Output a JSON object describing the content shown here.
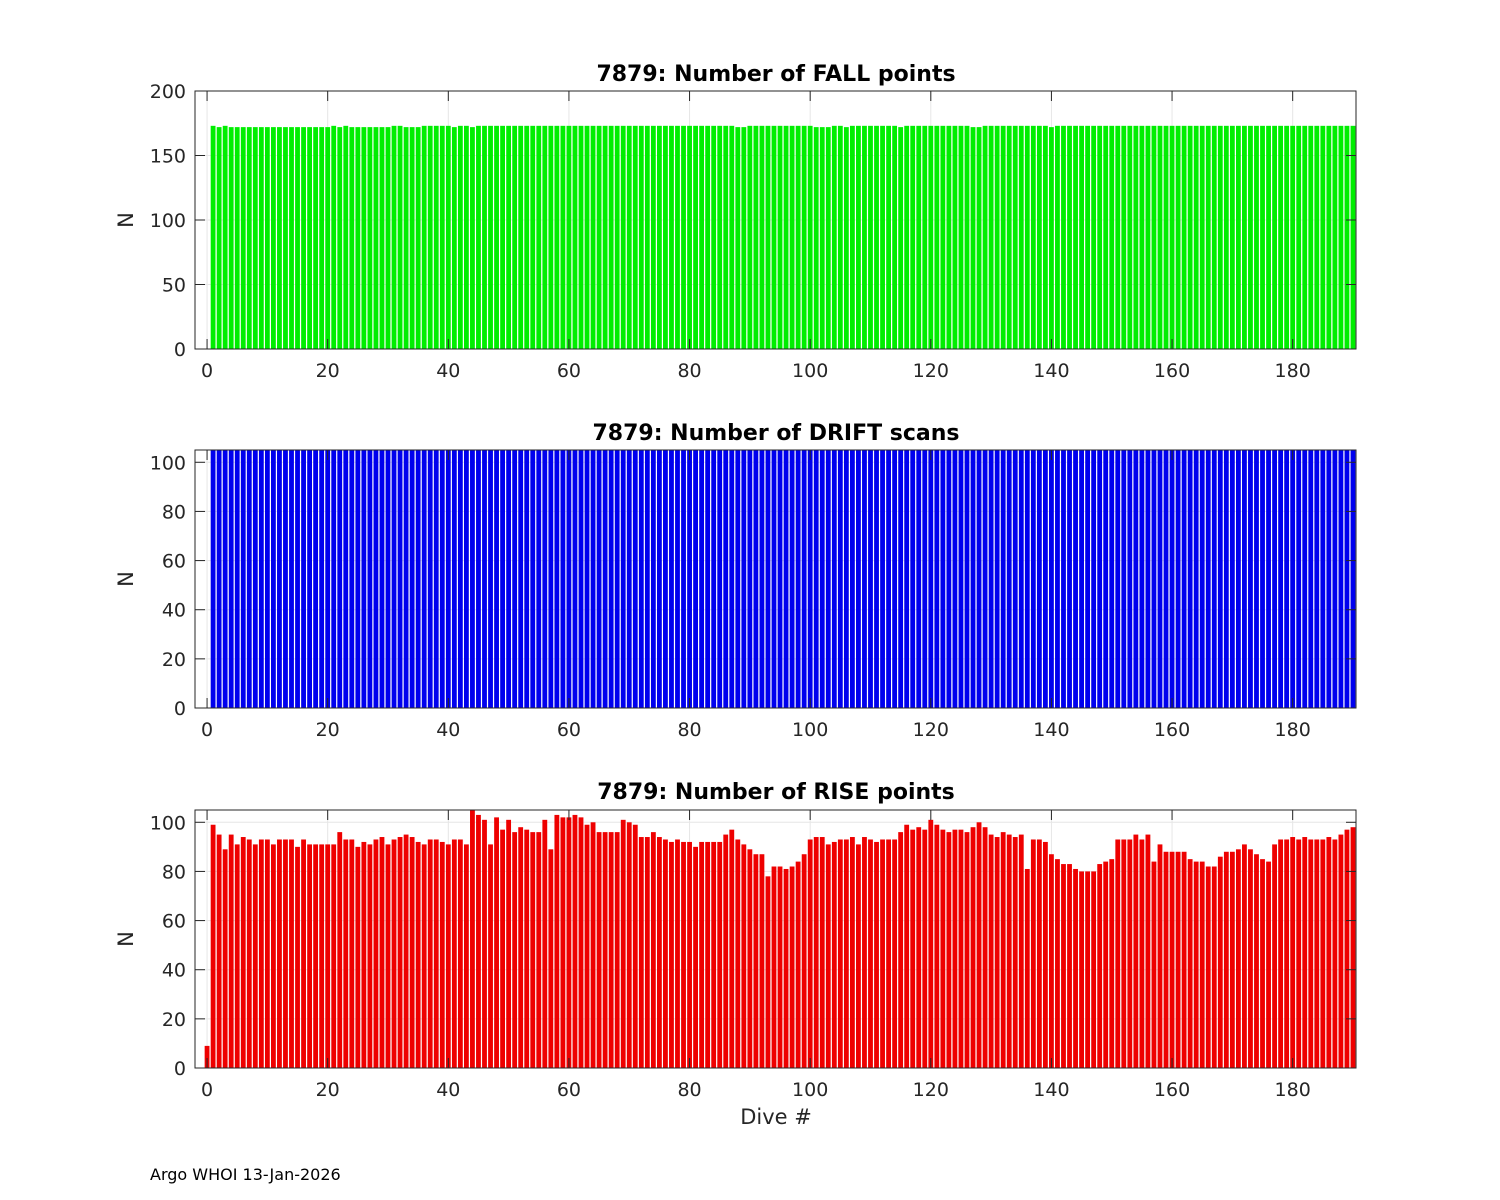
{
  "footer": "Argo WHOI 13-Jan-2026",
  "chart_data": [
    {
      "type": "bar",
      "title": "7879: Number of FALL points",
      "xlabel": "",
      "ylabel": "N",
      "xlim": [
        -2,
        190.5
      ],
      "ylim": [
        0,
        200
      ],
      "xticks": [
        0,
        20,
        40,
        60,
        80,
        100,
        120,
        140,
        160,
        180
      ],
      "yticks": [
        0,
        50,
        100,
        150,
        200
      ],
      "color": "#00ee00",
      "grid": true,
      "series": [
        {
          "x_start": 1,
          "values": [
            173,
            172,
            173,
            172,
            172,
            172,
            172,
            172,
            172,
            172,
            172,
            172,
            172,
            172,
            172,
            172,
            172,
            172,
            172,
            172,
            173,
            172,
            173,
            172,
            172,
            172,
            172,
            172,
            172,
            172,
            173,
            173,
            172,
            172,
            172,
            173,
            173,
            173,
            173,
            173,
            172,
            173,
            173,
            172,
            173,
            173,
            173,
            173,
            173,
            173,
            173,
            173,
            173,
            173,
            173,
            173,
            173,
            173,
            173,
            173,
            173,
            173,
            173,
            173,
            173,
            173,
            173,
            173,
            173,
            173,
            173,
            173,
            173,
            173,
            173,
            173,
            173,
            173,
            173,
            173,
            173,
            173,
            173,
            173,
            173,
            173,
            173,
            172,
            172,
            173,
            173,
            173,
            173,
            173,
            173,
            173,
            173,
            173,
            173,
            173,
            172,
            172,
            172,
            173,
            173,
            172,
            173,
            173,
            173,
            173,
            173,
            173,
            173,
            173,
            172,
            173,
            173,
            173,
            173,
            173,
            173,
            173,
            173,
            173,
            173,
            173,
            172,
            172,
            173,
            173,
            173,
            173,
            173,
            173,
            173,
            173,
            173,
            173,
            173,
            172,
            173,
            173,
            173,
            173,
            173,
            173,
            173,
            173,
            173,
            173,
            173,
            173,
            173,
            173,
            173,
            173,
            173,
            173,
            173,
            173,
            173,
            173,
            173,
            173,
            173,
            173,
            173,
            173,
            173,
            173,
            173,
            173,
            173,
            173,
            173,
            173,
            173,
            173,
            173,
            173,
            173,
            173,
            173,
            173,
            173,
            173,
            173,
            173,
            173,
            173
          ]
        }
      ]
    },
    {
      "type": "bar",
      "title": "7879: Number of DRIFT scans",
      "xlabel": "",
      "ylabel": "N",
      "xlim": [
        -2,
        190.5
      ],
      "ylim": [
        0,
        105
      ],
      "xticks": [
        0,
        20,
        40,
        60,
        80,
        100,
        120,
        140,
        160,
        180
      ],
      "yticks": [
        0,
        20,
        40,
        60,
        80,
        100
      ],
      "color": "#0000ee",
      "grid": true,
      "series": [
        {
          "x_start": 1,
          "values": [
            105,
            105,
            105,
            105,
            105,
            105,
            105,
            105,
            105,
            105,
            105,
            105,
            105,
            105,
            105,
            105,
            105,
            105,
            105,
            105,
            105,
            105,
            105,
            105,
            105,
            105,
            105,
            105,
            105,
            105,
            105,
            105,
            105,
            105,
            105,
            105,
            105,
            105,
            105,
            105,
            105,
            105,
            105,
            105,
            105,
            105,
            105,
            105,
            105,
            105,
            105,
            105,
            105,
            105,
            105,
            105,
            105,
            105,
            105,
            105,
            105,
            105,
            105,
            105,
            105,
            105,
            105,
            105,
            105,
            105,
            105,
            105,
            105,
            105,
            105,
            105,
            105,
            105,
            105,
            105,
            105,
            105,
            105,
            105,
            105,
            105,
            105,
            105,
            105,
            105,
            105,
            105,
            105,
            105,
            105,
            105,
            105,
            105,
            105,
            105,
            105,
            105,
            105,
            105,
            105,
            105,
            105,
            105,
            105,
            105,
            105,
            105,
            105,
            105,
            105,
            105,
            105,
            105,
            105,
            105,
            105,
            105,
            105,
            105,
            105,
            105,
            105,
            105,
            105,
            105,
            105,
            105,
            105,
            105,
            105,
            105,
            105,
            105,
            105,
            105,
            105,
            105,
            105,
            105,
            105,
            105,
            105,
            105,
            105,
            105,
            105,
            105,
            105,
            105,
            105,
            105,
            105,
            105,
            105,
            105,
            105,
            105,
            105,
            105,
            105,
            105,
            105,
            105,
            105,
            105,
            105,
            105,
            105,
            105,
            105,
            105,
            105,
            105,
            105,
            105,
            105,
            105,
            105,
            105,
            105,
            105,
            105,
            105,
            105,
            105
          ]
        }
      ]
    },
    {
      "type": "bar",
      "title": "7879: Number of RISE points",
      "xlabel": "Dive #",
      "ylabel": "N",
      "xlim": [
        -2,
        190.5
      ],
      "ylim": [
        0,
        105
      ],
      "xticks": [
        0,
        20,
        40,
        60,
        80,
        100,
        120,
        140,
        160,
        180
      ],
      "yticks": [
        0,
        20,
        40,
        60,
        80,
        100
      ],
      "color": "#ee0000",
      "grid": true,
      "series": [
        {
          "x_start": 0,
          "values": [
            9,
            99,
            95,
            89,
            95,
            91,
            94,
            93,
            91,
            93,
            93,
            91,
            93,
            93,
            93,
            90,
            93,
            91,
            91,
            91,
            91,
            91,
            96,
            93,
            93,
            90,
            92,
            91,
            93,
            94,
            91,
            93,
            94,
            95,
            94,
            92,
            91,
            93,
            93,
            92,
            91,
            93,
            93,
            91,
            105,
            103,
            101,
            91,
            102,
            97,
            101,
            96,
            98,
            97,
            96,
            96,
            101,
            89,
            103,
            102,
            102,
            103,
            102,
            99,
            100,
            96,
            96,
            96,
            96,
            101,
            100,
            99,
            94,
            94,
            96,
            94,
            93,
            92,
            93,
            92,
            92,
            90,
            92,
            92,
            92,
            92,
            95,
            97,
            93,
            91,
            89,
            87,
            87,
            78,
            82,
            82,
            81,
            82,
            84,
            87,
            93,
            94,
            94,
            91,
            92,
            93,
            93,
            94,
            91,
            94,
            93,
            92,
            93,
            93,
            93,
            96,
            99,
            97,
            98,
            97,
            101,
            99,
            97,
            96,
            97,
            97,
            96,
            98,
            100,
            98,
            95,
            94,
            96,
            95,
            94,
            95,
            81,
            93,
            93,
            92,
            87,
            85,
            83,
            83,
            81,
            80,
            80,
            80,
            83,
            84,
            85,
            93,
            93,
            93,
            95,
            93,
            95,
            84,
            91,
            88,
            88,
            88,
            88,
            85,
            84,
            84,
            82,
            82,
            86,
            88,
            88,
            89,
            91,
            89,
            87,
            85,
            84,
            91,
            93,
            93,
            94,
            93,
            94,
            93,
            93,
            93,
            94,
            93,
            95,
            97,
            98
          ]
        }
      ]
    }
  ]
}
